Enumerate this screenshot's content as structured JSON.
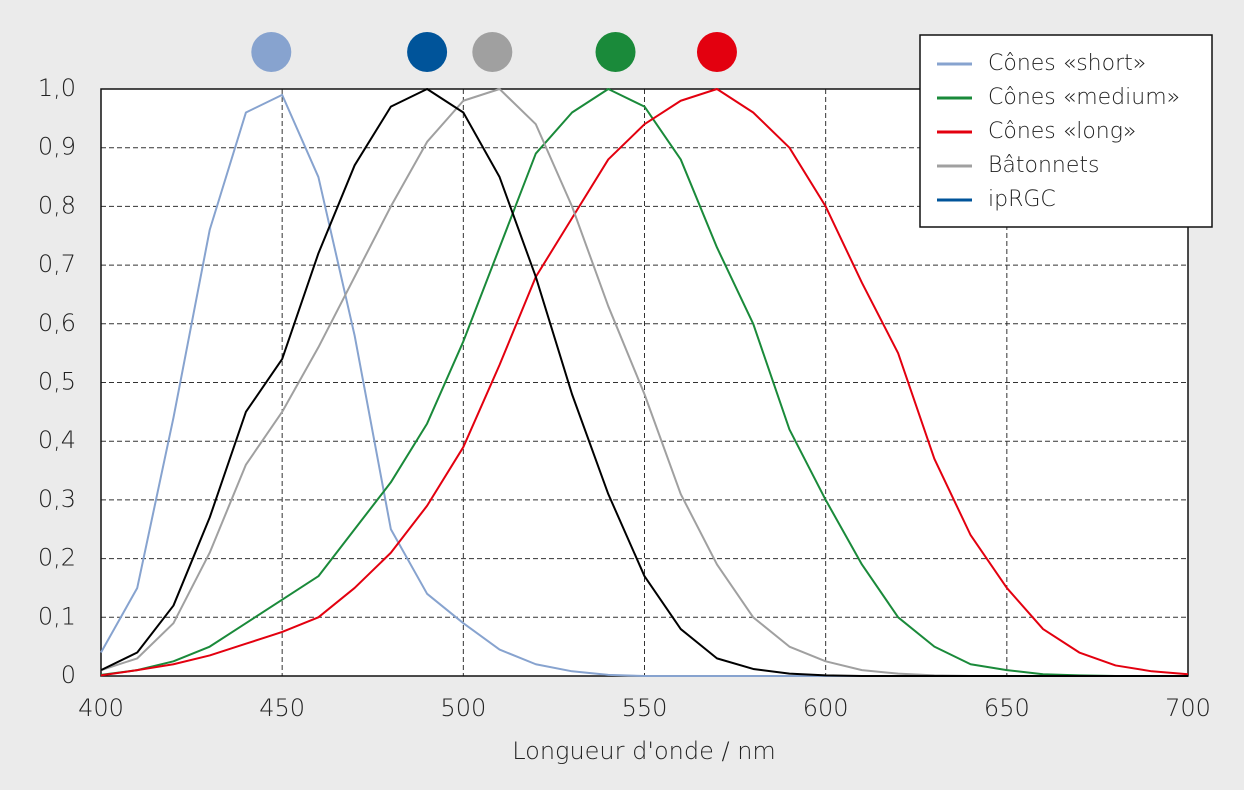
{
  "chart_data": {
    "type": "line",
    "x_label": "Longueur d'onde / nm",
    "x": [
      400,
      410,
      420,
      430,
      440,
      450,
      460,
      470,
      480,
      490,
      500,
      510,
      520,
      530,
      540,
      550,
      560,
      570,
      580,
      590,
      600,
      610,
      620,
      630,
      640,
      650,
      660,
      670,
      680,
      690,
      700
    ],
    "series": [
      {
        "name": "Cônes «short»",
        "color": "#87a3cf",
        "curve_color": "#87a3cf",
        "peak": 447,
        "values": [
          0.04,
          0.15,
          0.44,
          0.76,
          0.96,
          0.99,
          0.85,
          0.58,
          0.25,
          0.14,
          0.09,
          0.045,
          0.02,
          0.008,
          0.002,
          0,
          0,
          0,
          0,
          0,
          0,
          0,
          0,
          0,
          0,
          0,
          0,
          0,
          0,
          0,
          0
        ]
      },
      {
        "name": "Cônes «medium»",
        "color": "#1a8a3a",
        "curve_color": "#1a8a3a",
        "peak": 542,
        "values": [
          0.002,
          0.01,
          0.025,
          0.05,
          0.09,
          0.13,
          0.17,
          0.25,
          0.33,
          0.43,
          0.57,
          0.73,
          0.89,
          0.96,
          1.0,
          0.97,
          0.88,
          0.73,
          0.6,
          0.42,
          0.3,
          0.19,
          0.1,
          0.05,
          0.02,
          0.01,
          0.003,
          0.001,
          0,
          0,
          0
        ]
      },
      {
        "name": "Cônes «long»",
        "color": "#e3000f",
        "curve_color": "#e3000f",
        "peak": 570,
        "values": [
          0.001,
          0.01,
          0.02,
          0.035,
          0.055,
          0.075,
          0.1,
          0.15,
          0.21,
          0.29,
          0.39,
          0.53,
          0.68,
          0.78,
          0.88,
          0.94,
          0.98,
          1.0,
          0.96,
          0.9,
          0.8,
          0.67,
          0.55,
          0.37,
          0.24,
          0.15,
          0.08,
          0.04,
          0.018,
          0.008,
          0.003
        ]
      },
      {
        "name": "Bâtonnets",
        "color": "#a0a0a0",
        "curve_color": "#a0a0a0",
        "peak": 508,
        "values": [
          0.01,
          0.03,
          0.09,
          0.21,
          0.36,
          0.45,
          0.56,
          0.68,
          0.8,
          0.91,
          0.98,
          1.0,
          0.94,
          0.8,
          0.63,
          0.48,
          0.31,
          0.19,
          0.1,
          0.05,
          0.025,
          0.01,
          0.004,
          0.001,
          0,
          0,
          0,
          0,
          0,
          0,
          0
        ]
      },
      {
        "name": "ipRGC",
        "color": "#00549a",
        "curve_color": "#000000",
        "peak": 490,
        "values": [
          0.01,
          0.04,
          0.12,
          0.27,
          0.45,
          0.54,
          0.72,
          0.87,
          0.97,
          1.0,
          0.96,
          0.85,
          0.68,
          0.48,
          0.31,
          0.17,
          0.08,
          0.03,
          0.012,
          0.004,
          0.001,
          0,
          0,
          0,
          0,
          0,
          0,
          0,
          0,
          0,
          0
        ]
      }
    ],
    "xlim": [
      400,
      700
    ],
    "ylim": [
      0,
      1.0
    ],
    "xticks": [
      400,
      450,
      500,
      550,
      600,
      650,
      700
    ],
    "yticks": [
      0,
      {
        "value": 0.1,
        "label": "0,1"
      },
      {
        "value": 0.2,
        "label": "0,2"
      },
      {
        "value": 0.3,
        "label": "0,3"
      },
      {
        "value": 0.4,
        "label": "0,4"
      },
      {
        "value": 0.5,
        "label": "0,5"
      },
      {
        "value": 0.6,
        "label": "0,6"
      },
      {
        "value": 0.7,
        "label": "0,7"
      },
      {
        "value": 0.8,
        "label": "0,8"
      },
      {
        "value": 0.9,
        "label": "0,9"
      },
      {
        "value": 1.0,
        "label": "1,0"
      }
    ],
    "grid": true,
    "legend": "upper right"
  }
}
